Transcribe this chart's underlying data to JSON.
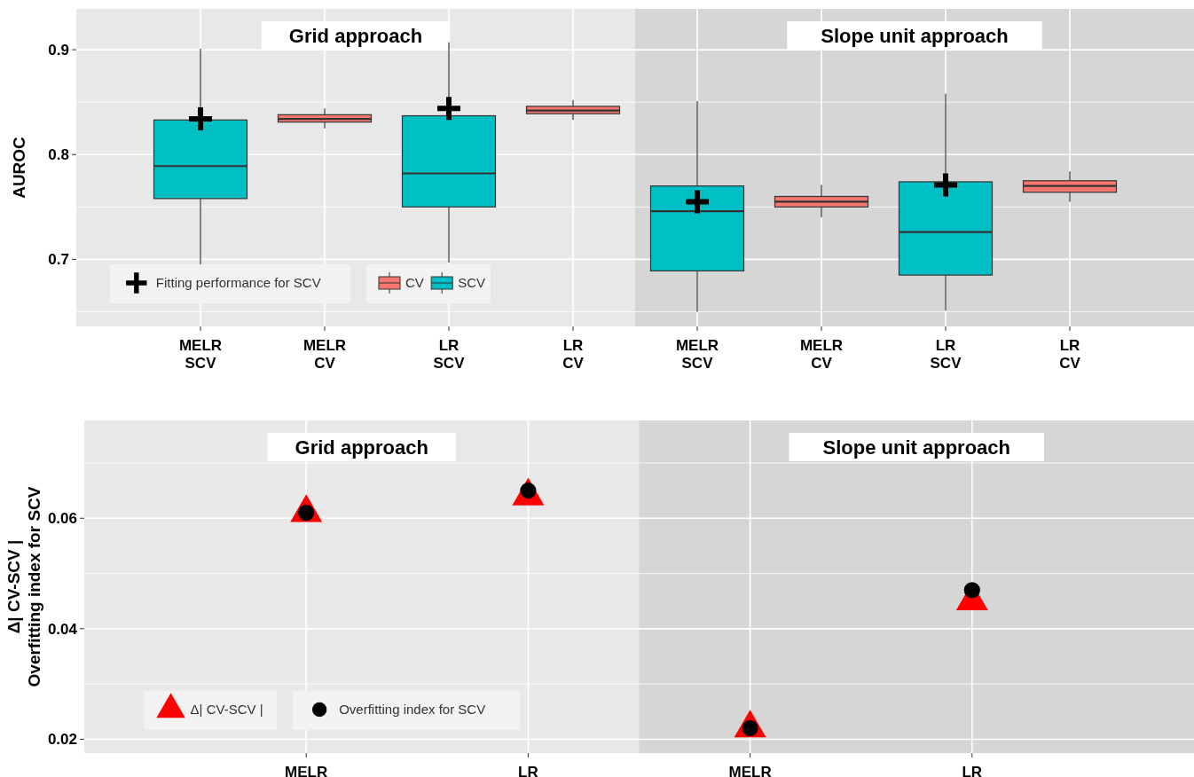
{
  "chart_data": [
    {
      "type": "box",
      "ylabel": "AUROC",
      "categories": [
        "MELR\nSCV",
        "MELR\nCV",
        "LR\nSCV",
        "LR\nCV",
        "MELR\nSCV",
        "MELR\nCV",
        "LR\nSCV",
        "LR\nCV"
      ],
      "ylim": [
        0.636,
        0.939
      ],
      "yticks": [
        0.7,
        0.8,
        0.9
      ],
      "grid": true,
      "legend": "bottom left",
      "annotations": [
        "Grid approach",
        "Slope unit approach"
      ],
      "series": [
        {
          "name": "Fitting performance for SCV",
          "type": "scatter",
          "marker": "cross",
          "color": "#000000",
          "values": [
            0.834,
            null,
            0.844,
            null,
            0.755,
            null,
            0.771,
            null
          ]
        },
        {
          "name": "CV",
          "color": "#f8766d",
          "boxes": [
            null,
            {
              "low": 0.825,
              "q1": 0.831,
              "median": 0.834,
              "q3": 0.838,
              "high": 0.844
            },
            null,
            {
              "low": 0.833,
              "q1": 0.839,
              "median": 0.842,
              "q3": 0.846,
              "high": 0.852
            },
            null,
            {
              "low": 0.74,
              "q1": 0.75,
              "median": 0.755,
              "q3": 0.76,
              "high": 0.771
            },
            null,
            {
              "low": 0.755,
              "q1": 0.764,
              "median": 0.77,
              "q3": 0.775,
              "high": 0.784
            }
          ]
        },
        {
          "name": "SCV",
          "color": "#00bfc4",
          "boxes": [
            {
              "low": 0.69,
              "q1": 0.758,
              "median": 0.789,
              "q3": 0.833,
              "high": 0.901
            },
            null,
            {
              "low": 0.697,
              "q1": 0.75,
              "median": 0.782,
              "q3": 0.837,
              "high": 0.907
            },
            null,
            {
              "low": 0.65,
              "q1": 0.689,
              "median": 0.746,
              "q3": 0.77,
              "high": 0.851
            },
            null,
            {
              "low": 0.651,
              "q1": 0.685,
              "median": 0.726,
              "q3": 0.774,
              "high": 0.858
            },
            null
          ]
        }
      ]
    },
    {
      "type": "scatter",
      "ylabel": "Δ| CV-SCV |\nOverfitting index for SCV",
      "categories": [
        "MELR",
        "LR",
        "MELR",
        "LR"
      ],
      "ylim": [
        0.0175,
        0.0777
      ],
      "yticks": [
        0.02,
        0.04,
        0.06
      ],
      "grid": true,
      "legend": "bottom left",
      "annotations": [
        "Grid approach",
        "Slope unit approach"
      ],
      "series": [
        {
          "name": "Δ| CV-SCV |",
          "marker": "triangle",
          "color": "#ff0000",
          "values": [
            0.061,
            0.064,
            0.022,
            0.045
          ]
        },
        {
          "name": "Overfitting index for SCV",
          "marker": "circle",
          "color": "#000000",
          "values": [
            0.061,
            0.065,
            0.022,
            0.047
          ]
        }
      ]
    }
  ]
}
